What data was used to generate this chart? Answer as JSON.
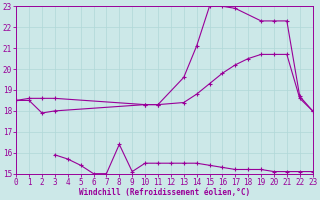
{
  "xlabel": "Windchill (Refroidissement éolien,°C)",
  "ylabel": "",
  "xlim": [
    0,
    23
  ],
  "ylim": [
    15,
    23
  ],
  "yticks": [
    15,
    16,
    17,
    18,
    19,
    20,
    21,
    22,
    23
  ],
  "xticks": [
    0,
    1,
    2,
    3,
    4,
    5,
    6,
    7,
    8,
    9,
    10,
    11,
    12,
    13,
    14,
    15,
    16,
    17,
    18,
    19,
    20,
    21,
    22,
    23
  ],
  "bg_color": "#cce8e8",
  "line_color": "#990099",
  "grid_color": "#b0d8d8",
  "line1_x": [
    0,
    1,
    2,
    3,
    10,
    11,
    13,
    14,
    15,
    16,
    17,
    19,
    20,
    21,
    22,
    23
  ],
  "line1_y": [
    18.5,
    18.6,
    18.6,
    18.6,
    18.3,
    18.3,
    19.6,
    21.1,
    23.0,
    23.0,
    22.9,
    22.3,
    22.3,
    22.3,
    18.7,
    18.0
  ],
  "line2_x": [
    0,
    1,
    2,
    3,
    10,
    11,
    13,
    14,
    15,
    16,
    17,
    18,
    19,
    20,
    21,
    22,
    23
  ],
  "line2_y": [
    18.5,
    18.5,
    17.9,
    18.0,
    18.3,
    18.3,
    18.4,
    18.8,
    19.3,
    19.8,
    20.2,
    20.5,
    20.7,
    20.7,
    20.7,
    18.6,
    18.0
  ],
  "line3_x": [
    3,
    4,
    5,
    6,
    7,
    8,
    9,
    10,
    11,
    12,
    13,
    14,
    15,
    16,
    17,
    18,
    19,
    20,
    21,
    22,
    23
  ],
  "line3_y": [
    15.9,
    15.7,
    15.4,
    15.0,
    15.0,
    16.4,
    15.1,
    15.5,
    15.5,
    15.5,
    15.5,
    15.5,
    15.4,
    15.3,
    15.2,
    15.2,
    15.2,
    15.1,
    15.1,
    15.1,
    15.1
  ],
  "marker": "+",
  "markersize": 3.5,
  "linewidth": 0.8,
  "tick_labelsize": 5.5,
  "xlabel_fontsize": 5.5
}
